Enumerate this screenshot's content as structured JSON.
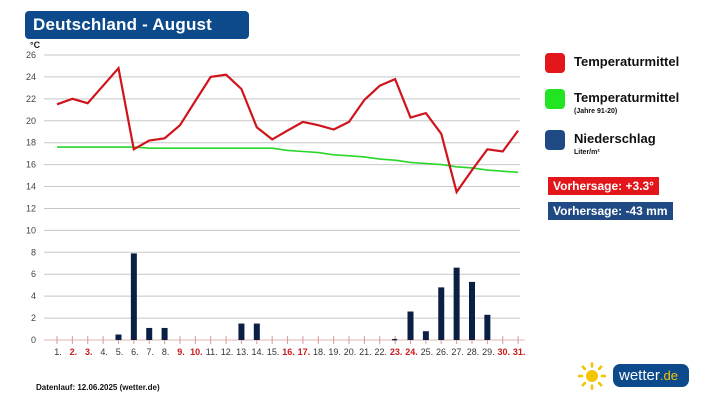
{
  "header": {
    "title": "Deutschland - August",
    "unit": "°C"
  },
  "legend": {
    "items": [
      {
        "label": "Temperaturmittel",
        "sublabel": "",
        "color": "#e2161b"
      },
      {
        "label": "Temperaturmittel",
        "sublabel": "(Jahre 91-20)",
        "color": "#22e522"
      },
      {
        "label": "Niederschlag",
        "sublabel": "Liter/m²",
        "color": "#1f4a84"
      }
    ]
  },
  "forecast": {
    "temperature": "Vorhersage: +3.3°",
    "temperature_color": "#e2161b",
    "precipitation": "Vorhersage: -43 mm",
    "precipitation_color": "#1f4a84"
  },
  "footer": {
    "data_run": "Datenlauf: 12.06.2025 (wetter.de)"
  },
  "logo": {
    "name": "wetter",
    "tld": ".de"
  },
  "colors": {
    "title_bg": "#0d4a8c",
    "temp_line": "#d0141c",
    "climate_line": "#2ad62a",
    "precip_bar": "#0b1f44",
    "grid": "#c8c8c8",
    "weekend_label": "#cc1a1a"
  },
  "chart_data": {
    "type": "line+bar",
    "title": "Deutschland - August",
    "xlabel": "",
    "ylabel": "°C",
    "ylim": [
      0,
      26
    ],
    "yticks": [
      0,
      2,
      4,
      6,
      8,
      10,
      12,
      14,
      16,
      18,
      20,
      22,
      24,
      26
    ],
    "grid": true,
    "legend_position": "right",
    "categories": [
      "1.",
      "2.",
      "3.",
      "4.",
      "5.",
      "6.",
      "7.",
      "8.",
      "9.",
      "10.",
      "11.",
      "12.",
      "13.",
      "14.",
      "15.",
      "16.",
      "17.",
      "18.",
      "19.",
      "20.",
      "21.",
      "22.",
      "23.",
      "24.",
      "25.",
      "26.",
      "27.",
      "28.",
      "29.",
      "30.",
      "31."
    ],
    "weekend_days": [
      2,
      3,
      9,
      10,
      16,
      17,
      23,
      24,
      30,
      31
    ],
    "series": [
      {
        "name": "Temperaturmittel",
        "type": "line",
        "values": [
          21.5,
          22.0,
          21.6,
          23.2,
          24.8,
          17.4,
          18.2,
          18.4,
          19.6,
          21.8,
          24.0,
          24.2,
          22.9,
          19.4,
          18.3,
          19.1,
          19.9,
          19.6,
          19.2,
          19.9,
          21.9,
          23.2,
          23.8,
          20.3,
          20.7,
          18.8,
          13.5,
          15.5,
          17.4,
          17.2,
          19.1
        ]
      },
      {
        "name": "Temperaturmittel (Jahre 91-20)",
        "type": "line",
        "values": [
          17.6,
          17.6,
          17.6,
          17.6,
          17.6,
          17.6,
          17.5,
          17.5,
          17.5,
          17.5,
          17.5,
          17.5,
          17.5,
          17.5,
          17.5,
          17.3,
          17.2,
          17.1,
          16.9,
          16.8,
          16.7,
          16.5,
          16.4,
          16.2,
          16.1,
          16.0,
          15.8,
          15.7,
          15.5,
          15.4,
          15.3
        ]
      },
      {
        "name": "Niederschlag (Liter/m²)",
        "type": "bar",
        "values": [
          0,
          0,
          0,
          0,
          0.5,
          7.9,
          1.1,
          1.1,
          0,
          0,
          0,
          0,
          1.5,
          1.5,
          0,
          0,
          0,
          0,
          0,
          0,
          0,
          0,
          0.1,
          2.6,
          0.8,
          4.8,
          6.6,
          5.3,
          2.3,
          0,
          0
        ]
      }
    ],
    "annotations": [
      "Vorhersage: +3.3°",
      "Vorhersage: -43 mm"
    ]
  }
}
